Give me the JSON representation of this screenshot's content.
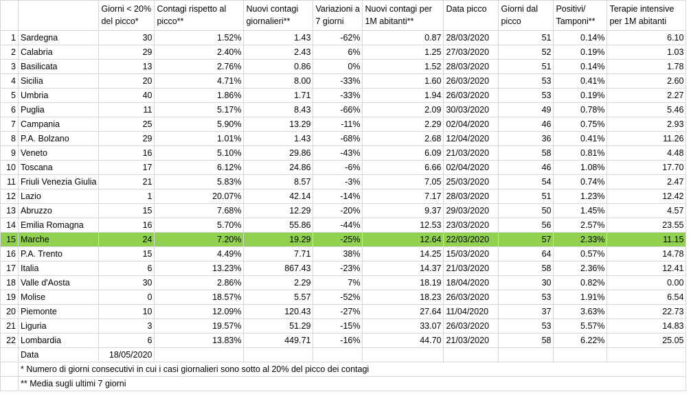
{
  "headers": [
    "",
    "",
    "Giorni < 20% del picco*",
    "Contagi rispetto al picco**",
    "Nuovi contagi giornalieri**",
    "Variazioni a 7 giorni",
    "Nuovi contagi per 1M abitanti**",
    "Data picco",
    "Giorni dal picco",
    "Positivi/ Tamponi**",
    "Terapie intensive per 1M abitanti"
  ],
  "rows": [
    [
      "1",
      "Sardegna",
      "30",
      "1.52%",
      "1.43",
      "-62%",
      "0.87",
      "28/03/2020",
      "51",
      "0.14%",
      "6.10"
    ],
    [
      "2",
      "Calabria",
      "29",
      "2.40%",
      "2.43",
      "6%",
      "1.25",
      "27/03/2020",
      "52",
      "0.19%",
      "1.03"
    ],
    [
      "3",
      "Basilicata",
      "13",
      "2.76%",
      "0.86",
      "0%",
      "1.52",
      "28/03/2020",
      "51",
      "0.14%",
      "1.78"
    ],
    [
      "4",
      "Sicilia",
      "20",
      "4.71%",
      "8.00",
      "-33%",
      "1.60",
      "26/03/2020",
      "53",
      "0.41%",
      "2.60"
    ],
    [
      "5",
      "Umbria",
      "40",
      "1.86%",
      "1.71",
      "-33%",
      "1.94",
      "26/03/2020",
      "53",
      "0.19%",
      "2.27"
    ],
    [
      "6",
      "Puglia",
      "11",
      "5.17%",
      "8.43",
      "-66%",
      "2.09",
      "30/03/2020",
      "49",
      "0.78%",
      "5.46"
    ],
    [
      "7",
      "Campania",
      "25",
      "5.90%",
      "13.29",
      "-11%",
      "2.29",
      "02/04/2020",
      "46",
      "0.75%",
      "2.93"
    ],
    [
      "8",
      "P.A. Bolzano",
      "29",
      "1.01%",
      "1.43",
      "-68%",
      "2.68",
      "12/04/2020",
      "36",
      "0.41%",
      "11.26"
    ],
    [
      "9",
      "Veneto",
      "16",
      "5.10%",
      "29.86",
      "-43%",
      "6.09",
      "21/03/2020",
      "58",
      "0.81%",
      "4.48"
    ],
    [
      "10",
      "Toscana",
      "17",
      "6.12%",
      "24.86",
      "-6%",
      "6.66",
      "02/04/2020",
      "46",
      "1.08%",
      "17.70"
    ],
    [
      "11",
      "Friuli Venezia Giulia",
      "21",
      "5.83%",
      "8.57",
      "-3%",
      "7.05",
      "25/03/2020",
      "54",
      "0.74%",
      "2.47"
    ],
    [
      "12",
      "Lazio",
      "1",
      "20.07%",
      "42.14",
      "-14%",
      "7.17",
      "28/03/2020",
      "51",
      "1.23%",
      "12.42"
    ],
    [
      "13",
      "Abruzzo",
      "15",
      "7.68%",
      "12.29",
      "-20%",
      "9.37",
      "29/03/2020",
      "50",
      "1.45%",
      "4.57"
    ],
    [
      "14",
      "Emilia Romagna",
      "16",
      "5.70%",
      "55.86",
      "-44%",
      "12.53",
      "23/03/2020",
      "56",
      "2.57%",
      "23.55"
    ],
    [
      "15",
      "Marche",
      "24",
      "7.20%",
      "19.29",
      "-25%",
      "12.64",
      "22/03/2020",
      "57",
      "2.33%",
      "11.15"
    ],
    [
      "16",
      "P.A. Trento",
      "15",
      "4.49%",
      "7.71",
      "38%",
      "14.25",
      "15/03/2020",
      "64",
      "0.57%",
      "14.78"
    ],
    [
      "17",
      "Italia",
      "6",
      "13.23%",
      "867.43",
      "-23%",
      "14.37",
      "21/03/2020",
      "58",
      "2.36%",
      "12.41"
    ],
    [
      "18",
      "Valle d'Aosta",
      "30",
      "2.86%",
      "2.29",
      "7%",
      "18.19",
      "18/04/2020",
      "30",
      "0.82%",
      "0.00"
    ],
    [
      "19",
      "Molise",
      "0",
      "18.57%",
      "5.57",
      "-52%",
      "18.23",
      "26/03/2020",
      "53",
      "1.91%",
      "6.54"
    ],
    [
      "20",
      "Piemonte",
      "10",
      "12.09%",
      "120.43",
      "-27%",
      "27.64",
      "11/04/2020",
      "37",
      "3.63%",
      "22.73"
    ],
    [
      "21",
      "Liguria",
      "3",
      "19.57%",
      "51.29",
      "-15%",
      "33.07",
      "26/03/2020",
      "53",
      "5.57%",
      "14.83"
    ],
    [
      "22",
      "Lombardia",
      "6",
      "13.83%",
      "449.71",
      "-16%",
      "44.70",
      "21/03/2020",
      "58",
      "6.22%",
      "25.05"
    ]
  ],
  "highlight_row_index": 14,
  "highlight_color": "#92d050",
  "data_row": {
    "label": "Data",
    "value": "18/05/2020"
  },
  "footnotes": [
    "* Numero di giorni consecutivi in cui i casi giornalieri sono sotto al 20% del picco dei contagi",
    "** Media sugli ultimi 7 giorni"
  ]
}
